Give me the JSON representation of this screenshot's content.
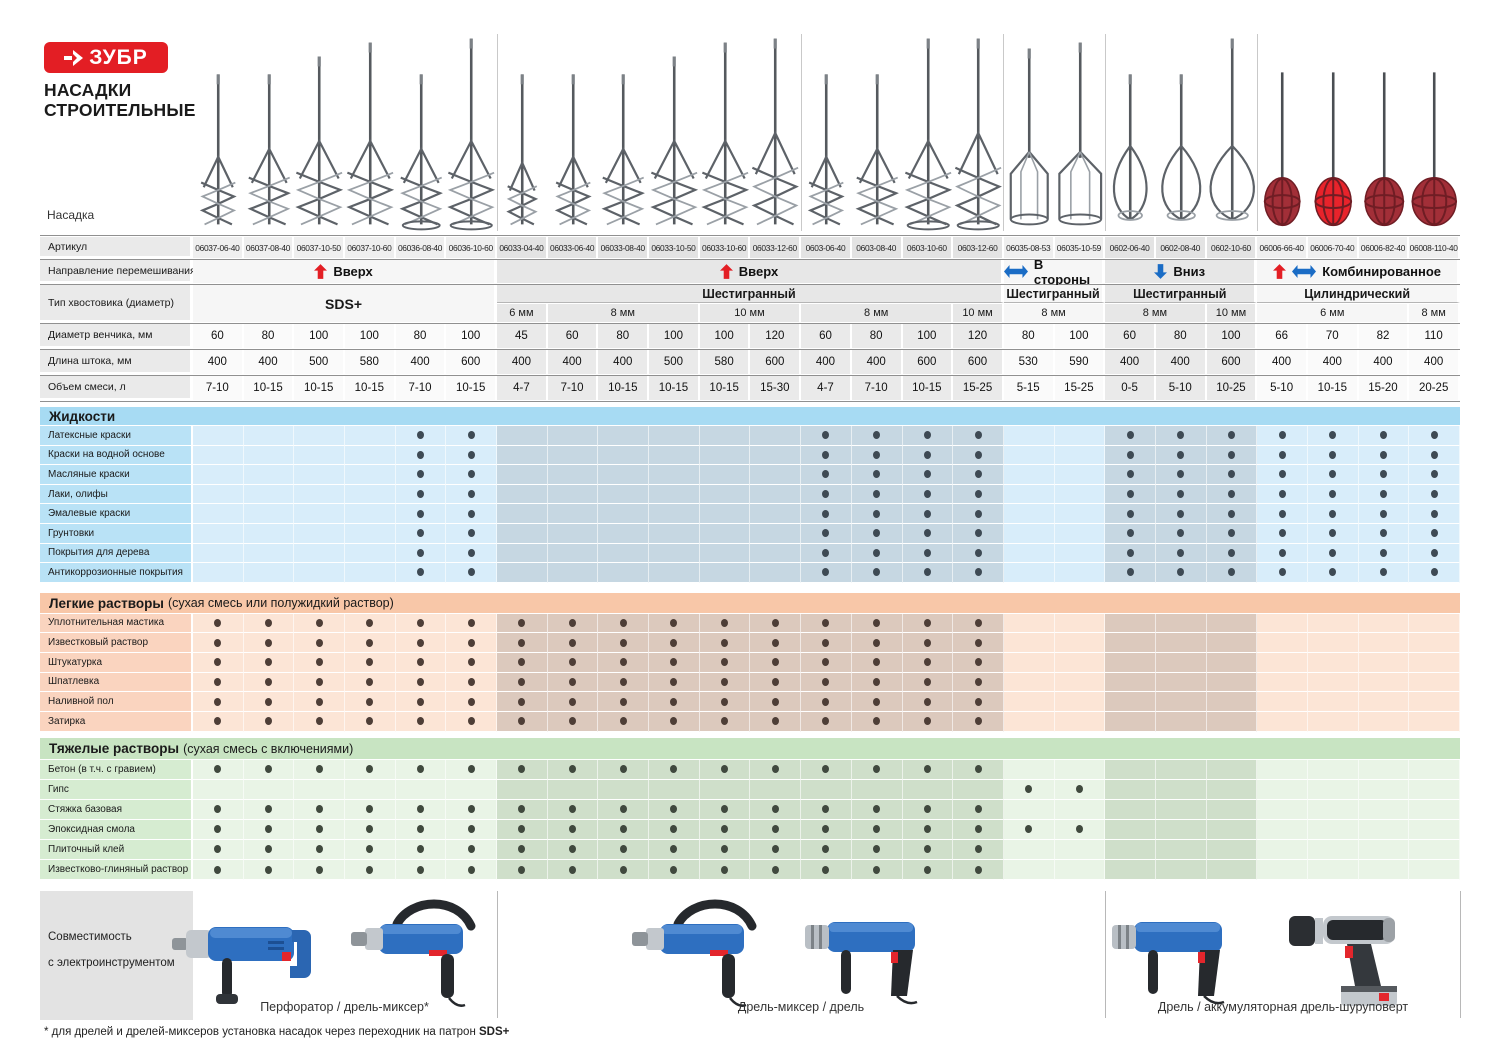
{
  "brand": {
    "logo": "ЗУБР",
    "title1": "НАСАДКИ",
    "title2": "СТРОИТЕЛЬНЫЕ"
  },
  "top": {
    "nozzle_label": "Насадка"
  },
  "spec_labels": {
    "article": "Артикул",
    "direction": "Направление перемешивания",
    "shank": "Тип хвостовика (диаметр)",
    "diameter": "Диаметр венчика, мм",
    "length": "Длина штока, мм",
    "volume": "Объем смеси, л"
  },
  "columns": [
    {
      "article": "06037-06-40",
      "diameter": "60",
      "length": "400",
      "volume": "7-10",
      "whisk": "spiral",
      "ring": false
    },
    {
      "article": "06037-08-40",
      "diameter": "80",
      "length": "400",
      "volume": "10-15",
      "whisk": "spiral",
      "ring": false
    },
    {
      "article": "06037-10-50",
      "diameter": "100",
      "length": "500",
      "volume": "10-15",
      "whisk": "spiral",
      "ring": false
    },
    {
      "article": "06037-10-60",
      "diameter": "100",
      "length": "580",
      "volume": "10-15",
      "whisk": "spiral",
      "ring": false
    },
    {
      "article": "06036-08-40",
      "diameter": "80",
      "length": "400",
      "volume": "7-10",
      "whisk": "spiral",
      "ring": true
    },
    {
      "article": "06036-10-60",
      "diameter": "100",
      "length": "600",
      "volume": "10-15",
      "whisk": "spiral",
      "ring": true
    },
    {
      "article": "06033-04-40",
      "diameter": "45",
      "length": "400",
      "volume": "4-7",
      "whisk": "spiral",
      "ring": false
    },
    {
      "article": "06033-06-40",
      "diameter": "60",
      "length": "400",
      "volume": "7-10",
      "whisk": "spiral",
      "ring": false
    },
    {
      "article": "06033-08-40",
      "diameter": "80",
      "length": "400",
      "volume": "10-15",
      "whisk": "spiral",
      "ring": false
    },
    {
      "article": "06033-10-50",
      "diameter": "100",
      "length": "500",
      "volume": "10-15",
      "whisk": "spiral",
      "ring": false
    },
    {
      "article": "06033-10-60",
      "diameter": "100",
      "length": "580",
      "volume": "10-15",
      "whisk": "spiral",
      "ring": false
    },
    {
      "article": "06033-12-60",
      "diameter": "120",
      "length": "600",
      "volume": "15-30",
      "whisk": "spiral",
      "ring": false
    },
    {
      "article": "0603-06-40",
      "diameter": "60",
      "length": "400",
      "volume": "4-7",
      "whisk": "spiral",
      "ring": false
    },
    {
      "article": "0603-08-40",
      "diameter": "80",
      "length": "400",
      "volume": "7-10",
      "whisk": "spiral",
      "ring": false
    },
    {
      "article": "0603-10-60",
      "diameter": "100",
      "length": "600",
      "volume": "10-15",
      "whisk": "spiral",
      "ring": true
    },
    {
      "article": "0603-12-60",
      "diameter": "120",
      "length": "600",
      "volume": "15-25",
      "whisk": "spiral",
      "ring": true
    },
    {
      "article": "06035-08-53",
      "diameter": "80",
      "length": "530",
      "volume": "5-15",
      "whisk": "cage",
      "ring": false
    },
    {
      "article": "06035-10-59",
      "diameter": "100",
      "length": "590",
      "volume": "15-25",
      "whisk": "cage",
      "ring": false
    },
    {
      "article": "0602-06-40",
      "diameter": "60",
      "length": "400",
      "volume": "0-5",
      "whisk": "drop",
      "ring": false
    },
    {
      "article": "0602-08-40",
      "diameter": "80",
      "length": "400",
      "volume": "5-10",
      "whisk": "drop",
      "ring": false
    },
    {
      "article": "0602-10-60",
      "diameter": "100",
      "length": "600",
      "volume": "10-25",
      "whisk": "drop",
      "ring": false
    },
    {
      "article": "06006-66-40",
      "diameter": "66",
      "length": "400",
      "volume": "5-10",
      "whisk": "ball",
      "ball_color": "#a22f38",
      "ring": false
    },
    {
      "article": "06006-70-40",
      "diameter": "70",
      "length": "400",
      "volume": "10-15",
      "whisk": "ball",
      "ball_color": "#e8232b",
      "ring": false
    },
    {
      "article": "06006-82-40",
      "diameter": "82",
      "length": "400",
      "volume": "15-20",
      "whisk": "ball",
      "ball_color": "#a22f38",
      "ring": false
    },
    {
      "article": "06008-110-40",
      "diameter": "110",
      "length": "400",
      "volume": "20-25",
      "whisk": "ball",
      "ball_color": "#a22f38",
      "ring": false
    }
  ],
  "groups": [
    {
      "direction": "Вверх",
      "arrows": [
        "up"
      ],
      "shank": "SDS+",
      "cols": [
        0,
        5
      ],
      "shade": "light",
      "sds_full": true,
      "sizes": []
    },
    {
      "direction": "Вверх",
      "arrows": [
        "up"
      ],
      "shank": "Шестигранный",
      "cols": [
        6,
        15
      ],
      "shade": "dark",
      "sds_full": false,
      "sizes": [
        [
          "6 мм",
          6,
          6
        ],
        [
          "8 мм",
          7,
          9
        ],
        [
          "10 мм",
          10,
          11
        ],
        [
          "8 мм",
          12,
          14
        ],
        [
          "10 мм",
          15,
          15
        ]
      ]
    },
    {
      "direction": "В стороны",
      "arrows": [
        "lr"
      ],
      "shank": "Шестигранный",
      "cols": [
        16,
        17
      ],
      "shade": "light",
      "sds_full": false,
      "sizes": [
        [
          "8 мм",
          16,
          17
        ]
      ]
    },
    {
      "direction": "Вниз",
      "arrows": [
        "down"
      ],
      "shank": "Шестигранный",
      "cols": [
        18,
        20
      ],
      "shade": "dark",
      "sds_full": false,
      "sizes": [
        [
          "8 мм",
          18,
          19
        ],
        [
          "10 мм",
          20,
          20
        ]
      ]
    },
    {
      "direction": "Комбинированное",
      "arrows": [
        "up",
        "lr"
      ],
      "shank": "Цилиндрический",
      "cols": [
        21,
        24
      ],
      "shade": "light",
      "sds_full": false,
      "sizes": [
        [
          "6 мм",
          21,
          23
        ],
        [
          "8 мм",
          24,
          24
        ]
      ]
    }
  ],
  "series_dividers_after_cols": [
    5,
    11,
    15,
    17,
    20
  ],
  "sections": [
    {
      "id": "liquids",
      "title": "Жидкости",
      "subtitle": "",
      "colors": {
        "header": "#a7dbf3",
        "label": "#b9e2f6",
        "light": "#d8edfa",
        "dark": "#c6d7e2",
        "dot": "#3e4a54"
      },
      "rows": [
        {
          "label": "Латексные краски",
          "dots": [
            [
              4,
              5
            ],
            [
              12,
              15
            ],
            [
              18,
              24
            ]
          ]
        },
        {
          "label": "Краски на водной основе",
          "dots": [
            [
              4,
              5
            ],
            [
              12,
              15
            ],
            [
              18,
              24
            ]
          ]
        },
        {
          "label": "Масляные краски",
          "dots": [
            [
              4,
              5
            ],
            [
              12,
              15
            ],
            [
              18,
              24
            ]
          ]
        },
        {
          "label": "Лаки, олифы",
          "dots": [
            [
              4,
              5
            ],
            [
              12,
              15
            ],
            [
              18,
              24
            ]
          ]
        },
        {
          "label": "Эмалевые краски",
          "dots": [
            [
              4,
              5
            ],
            [
              12,
              15
            ],
            [
              18,
              24
            ]
          ]
        },
        {
          "label": "Грунтовки",
          "dots": [
            [
              4,
              5
            ],
            [
              12,
              15
            ],
            [
              18,
              24
            ]
          ]
        },
        {
          "label": "Покрытия для дерева",
          "dots": [
            [
              4,
              5
            ],
            [
              12,
              15
            ],
            [
              18,
              24
            ]
          ]
        },
        {
          "label": "Антикоррозионные покрытия",
          "dots": [
            [
              4,
              5
            ],
            [
              12,
              15
            ],
            [
              18,
              24
            ]
          ]
        }
      ]
    },
    {
      "id": "light-mortars",
      "title": "Легкие растворы",
      "subtitle": "(сухая смесь или полужидкий раствор)",
      "colors": {
        "header": "#f8c7a8",
        "label": "#fad4bf",
        "light": "#fce5d6",
        "dark": "#dcc9bd",
        "dot": "#4e3e37"
      },
      "rows": [
        {
          "label": "Уплотнительная мастика",
          "dots": [
            [
              0,
              15
            ]
          ]
        },
        {
          "label": "Известковый раствор",
          "dots": [
            [
              0,
              15
            ]
          ]
        },
        {
          "label": "Штукатурка",
          "dots": [
            [
              0,
              15
            ]
          ]
        },
        {
          "label": "Шпатлевка",
          "dots": [
            [
              0,
              15
            ]
          ]
        },
        {
          "label": "Наливной пол",
          "dots": [
            [
              0,
              15
            ]
          ]
        },
        {
          "label": "Затирка",
          "dots": [
            [
              0,
              15
            ]
          ]
        }
      ]
    },
    {
      "id": "heavy-mortars",
      "title": "Тяжелые растворы",
      "subtitle": "(сухая смесь с включениями)",
      "colors": {
        "header": "#c8e4c2",
        "label": "#d6ecd1",
        "light": "#e9f4e6",
        "dark": "#cfdfca",
        "dot": "#40493e"
      },
      "rows": [
        {
          "label": "Бетон (в т.ч. с гравием)",
          "dots": [
            [
              0,
              15
            ]
          ]
        },
        {
          "label": "Гипс",
          "dots": [
            [
              16,
              17
            ]
          ]
        },
        {
          "label": "Стяжка базовая",
          "dots": [
            [
              0,
              15
            ]
          ]
        },
        {
          "label": "Эпоксидная смола",
          "dots": [
            [
              0,
              17
            ]
          ]
        },
        {
          "label": "Плиточный клей",
          "dots": [
            [
              0,
              15
            ]
          ]
        },
        {
          "label": "Известково-глиняный раствор",
          "dots": [
            [
              0,
              15
            ]
          ]
        }
      ]
    }
  ],
  "compatibility": {
    "label1": "Совместимость",
    "label2": "с электроинструментом",
    "sections": [
      {
        "caption": "Перфоратор / дрель-миксер*",
        "tools": [
          "hammer-drill",
          "mixer-drill"
        ]
      },
      {
        "caption": "Дрель-миксер / дрель",
        "tools": [
          "mixer-drill",
          "drill"
        ]
      },
      {
        "caption": "Дрель / аккумуляторная дрель-шуруповерт",
        "tools": [
          "drill",
          "cordless-drill"
        ]
      }
    ]
  },
  "footnote": {
    "text": "* для дрелей и дрелей-миксеров установка насадок через переходник на патрон ",
    "bold": "SDS+"
  },
  "colors": {
    "accent_red": "#e31e24",
    "accent_blue": "#1a6cc5",
    "grid_line": "#909090"
  }
}
